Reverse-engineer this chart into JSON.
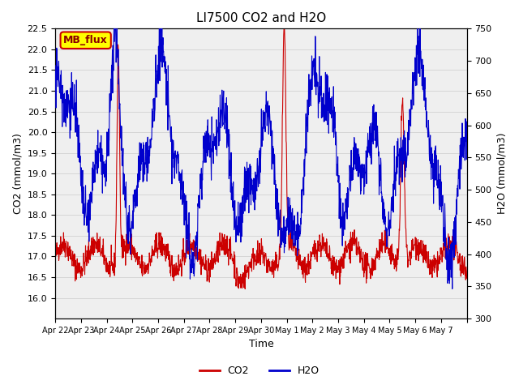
{
  "title": "LI7500 CO2 and H2O",
  "xlabel": "Time",
  "ylabel_left": "CO2 (mmol/m3)",
  "ylabel_right": "H2O (mmol/m3)",
  "co2_ylim": [
    15.5,
    22.5
  ],
  "h2o_ylim": [
    300,
    750
  ],
  "co2_yticks": [
    16.0,
    16.5,
    17.0,
    17.5,
    18.0,
    18.5,
    19.0,
    19.5,
    20.0,
    20.5,
    21.0,
    21.5,
    22.0,
    22.5
  ],
  "h2o_yticks": [
    300,
    350,
    400,
    450,
    500,
    550,
    600,
    650,
    700,
    750
  ],
  "xtick_positions": [
    0,
    1,
    2,
    3,
    4,
    5,
    6,
    7,
    8,
    9,
    10,
    11,
    12,
    13,
    14,
    15,
    16
  ],
  "xtick_labels": [
    "Apr 22",
    "Apr 23",
    "Apr 24",
    "Apr 25",
    "Apr 26",
    "Apr 27",
    "Apr 28",
    "Apr 29",
    "Apr 30",
    "May 1",
    "May 2",
    "May 3",
    "May 4",
    "May 5",
    "May 6",
    "May 7",
    ""
  ],
  "co2_color": "#cc0000",
  "h2o_color": "#0000cc",
  "bg_color": "#ffffff",
  "grid_color": "#cccccc",
  "annotation_text": "MB_flux",
  "annotation_bg": "#ffff00",
  "annotation_border": "#cc0000"
}
